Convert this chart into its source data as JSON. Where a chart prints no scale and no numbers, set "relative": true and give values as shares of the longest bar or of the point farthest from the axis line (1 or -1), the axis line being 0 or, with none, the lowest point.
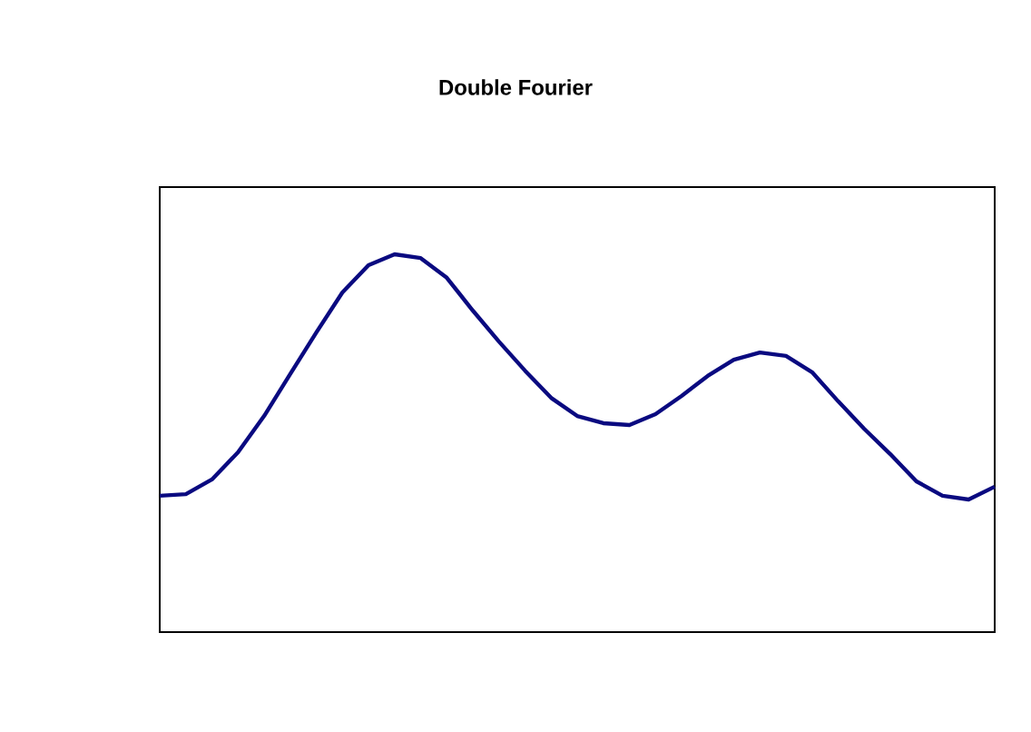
{
  "chart_data": {
    "type": "line",
    "title": "Double Fourier",
    "relative": true,
    "categories": [
      null,
      null,
      null,
      null,
      null,
      null,
      null,
      null,
      null,
      null,
      null,
      null,
      null,
      null,
      null,
      null,
      null,
      null,
      null,
      null,
      null,
      null,
      null,
      null,
      null,
      null,
      null,
      null,
      null,
      null,
      null,
      null,
      null
    ],
    "series": [
      {
        "color": "#0a0a80",
        "values": [
          0.361,
          0.365,
          0.404,
          0.476,
          0.572,
          0.683,
          0.793,
          0.899,
          0.971,
          1.0,
          0.99,
          0.938,
          0.851,
          0.769,
          0.692,
          0.62,
          0.572,
          0.553,
          0.548,
          0.577,
          0.625,
          0.678,
          0.721,
          0.74,
          0.731,
          0.688,
          0.611,
          0.538,
          0.471,
          0.399,
          0.361,
          0.351,
          0.385
        ]
      }
    ]
  }
}
